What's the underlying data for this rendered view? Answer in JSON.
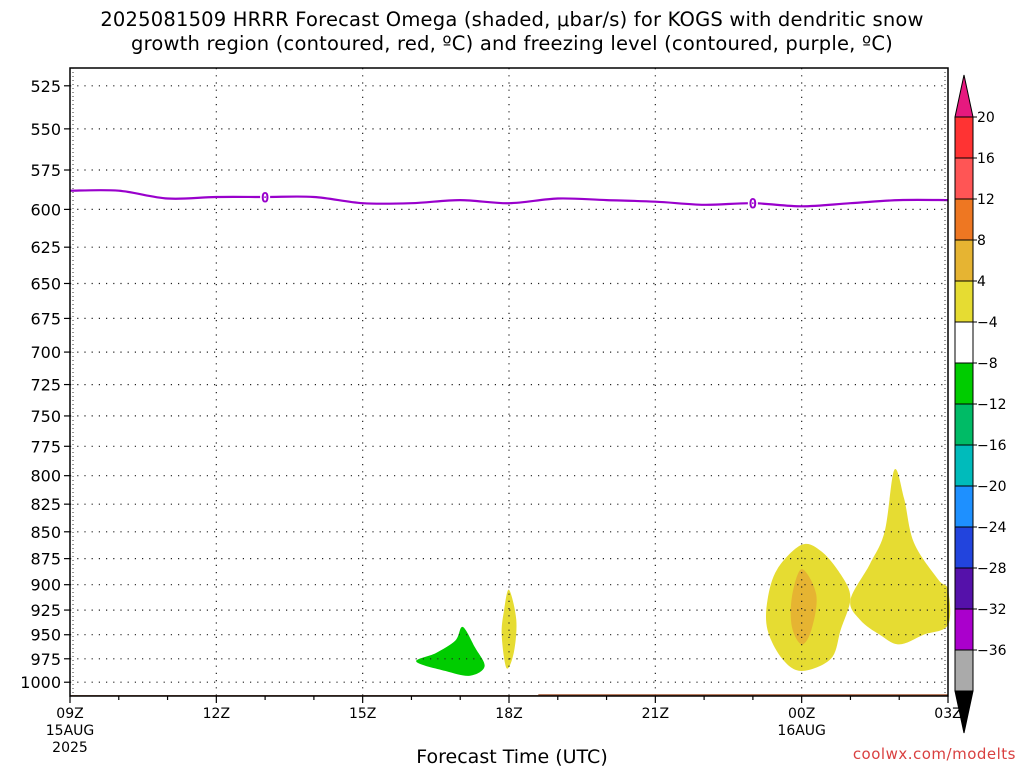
{
  "chart_data": {
    "type": "heatmap",
    "title": {
      "line1": "2025081509 HRRR Forecast Omega (shaded, μbar/s) for KOGS with dendritic snow",
      "line2": "growth region (contoured, red, ºC) and freezing level (contoured, purple, ºC)"
    },
    "xlabel": "Forecast Time (UTC)",
    "y_axis": {
      "ylim": [
        515,
        1015
      ],
      "direction": "pressure-decreasing-upward",
      "ticks": [
        525,
        550,
        575,
        600,
        625,
        650,
        675,
        700,
        725,
        750,
        775,
        800,
        825,
        850,
        875,
        900,
        925,
        950,
        975,
        1000
      ]
    },
    "x_axis": {
      "xlim_hours": [
        9,
        27
      ],
      "ticks": [
        {
          "hour": 9,
          "label": "09Z",
          "sub1": "15AUG",
          "sub2": "2025"
        },
        {
          "hour": 12,
          "label": "12Z",
          "sub1": "",
          "sub2": ""
        },
        {
          "hour": 15,
          "label": "15Z",
          "sub1": "",
          "sub2": ""
        },
        {
          "hour": 18,
          "label": "18Z",
          "sub1": "",
          "sub2": ""
        },
        {
          "hour": 21,
          "label": "21Z",
          "sub1": "",
          "sub2": ""
        },
        {
          "hour": 24,
          "label": "00Z",
          "sub1": "16AUG",
          "sub2": ""
        },
        {
          "hour": 27,
          "label": "03Z",
          "sub1": "",
          "sub2": ""
        }
      ],
      "minor_every_hours": 1
    },
    "grid": true,
    "freezing_level": {
      "color": "#9900cc",
      "label": "0",
      "label_hours": [
        13,
        23
      ],
      "points": [
        [
          9,
          588
        ],
        [
          10,
          588
        ],
        [
          11,
          593
        ],
        [
          12,
          592
        ],
        [
          13,
          592
        ],
        [
          14,
          592
        ],
        [
          15,
          596
        ],
        [
          16,
          596
        ],
        [
          17,
          594
        ],
        [
          18,
          596
        ],
        [
          19,
          593
        ],
        [
          20,
          594
        ],
        [
          21,
          595
        ],
        [
          22,
          597
        ],
        [
          23,
          596
        ],
        [
          24,
          598
        ],
        [
          25,
          596
        ],
        [
          26,
          594
        ],
        [
          27,
          594
        ]
      ]
    },
    "ground": {
      "color": "#a0522d",
      "points": [
        [
          9,
          1014
        ],
        [
          18.6,
          1014
        ],
        [
          18.6,
          1013
        ],
        [
          27,
          1013
        ]
      ]
    },
    "omega_regions": [
      {
        "value_range": "-8 to -4",
        "color": "#00cc00",
        "polygon": [
          [
            16.1,
            978
          ],
          [
            16.5,
            969
          ],
          [
            16.9,
            956
          ],
          [
            17.05,
            942
          ],
          [
            17.3,
            963
          ],
          [
            17.5,
            983
          ],
          [
            17.2,
            993
          ],
          [
            16.7,
            988
          ]
        ]
      },
      {
        "value_range": "4 to 8",
        "color": "#e6dc32",
        "polygon": [
          [
            18.0,
            905
          ],
          [
            18.15,
            935
          ],
          [
            18.1,
            968
          ],
          [
            17.95,
            985
          ],
          [
            17.85,
            950
          ],
          [
            17.9,
            925
          ]
        ]
      },
      {
        "value_range": "4 to 8",
        "color": "#e6dc32",
        "polygon": [
          [
            23.3,
            915
          ],
          [
            23.5,
            885
          ],
          [
            24.0,
            862
          ],
          [
            24.4,
            868
          ],
          [
            24.8,
            890
          ],
          [
            25.0,
            913
          ],
          [
            24.8,
            945
          ],
          [
            24.6,
            975
          ],
          [
            24.0,
            988
          ],
          [
            23.6,
            975
          ],
          [
            23.3,
            945
          ]
        ]
      },
      {
        "value_range": "8 to 12",
        "color": "#e6b432",
        "polygon": [
          [
            23.8,
            912
          ],
          [
            24.0,
            885
          ],
          [
            24.3,
            910
          ],
          [
            24.2,
            945
          ],
          [
            24.0,
            960
          ],
          [
            23.8,
            942
          ]
        ]
      },
      {
        "value_range": "4 to 8",
        "color": "#e6dc32",
        "polygon": [
          [
            25.0,
            915
          ],
          [
            25.4,
            880
          ],
          [
            25.7,
            850
          ],
          [
            25.9,
            795
          ],
          [
            26.1,
            820
          ],
          [
            26.3,
            860
          ],
          [
            26.8,
            895
          ],
          [
            27.0,
            905
          ],
          [
            27.0,
            940
          ],
          [
            26.5,
            950
          ],
          [
            26.0,
            960
          ],
          [
            25.6,
            950
          ],
          [
            25.2,
            935
          ]
        ]
      }
    ],
    "colorbar": {
      "title": "μbar/s",
      "top_arrow_color": "#e6197f",
      "bottom_arrow_color": "#000000",
      "segments": [
        {
          "color": "#ff3333"
        },
        {
          "color": "#ff5555"
        },
        {
          "color": "#ee7722"
        },
        {
          "color": "#e6b432"
        },
        {
          "color": "#e6dc32"
        },
        {
          "color": "#ffffff"
        },
        {
          "color": "#00cc00"
        },
        {
          "color": "#00bb66"
        },
        {
          "color": "#00bbbb"
        },
        {
          "color": "#1e90ff"
        },
        {
          "color": "#2244dd"
        },
        {
          "color": "#5511aa"
        },
        {
          "color": "#aa00cc"
        },
        {
          "color": "#aaaaaa"
        }
      ],
      "labels": [
        "20",
        "16",
        "12",
        "8",
        "4",
        "−4",
        "−8",
        "−12",
        "−16",
        "−20",
        "−24",
        "−28",
        "−32",
        "−36"
      ]
    }
  },
  "credit": "coolwx.com/modelts"
}
